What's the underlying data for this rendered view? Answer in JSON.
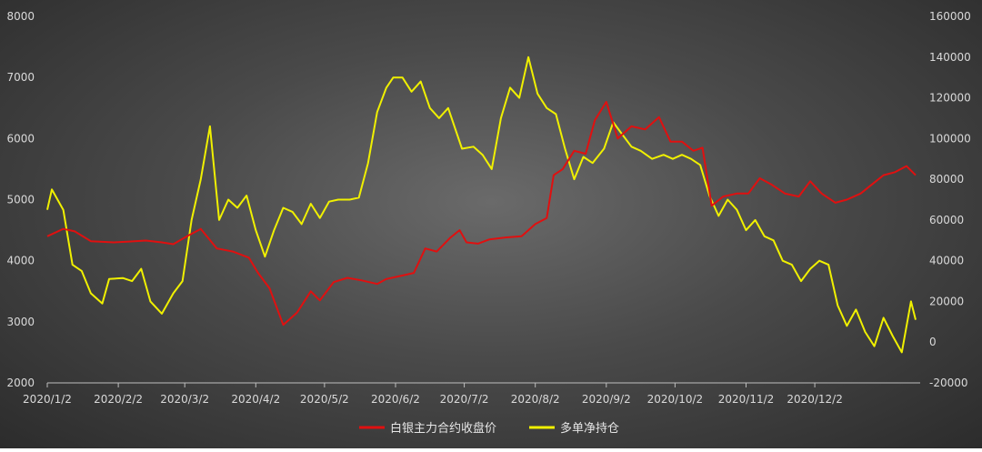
{
  "chart_data": {
    "type": "line",
    "x_ticks": [
      "2020/1/2",
      "2020/2/2",
      "2020/3/2",
      "2020/4/2",
      "2020/5/2",
      "2020/6/2",
      "2020/7/2",
      "2020/8/2",
      "2020/9/2",
      "2020/10/2",
      "2020/11/2",
      "2020/12/2"
    ],
    "y_left": {
      "ticks": [
        2000,
        3000,
        4000,
        5000,
        6000,
        7000,
        8000
      ],
      "range": [
        2000,
        8000
      ]
    },
    "y_right": {
      "ticks": [
        "-20000",
        "0",
        "20000",
        "40000",
        "60000",
        "80000",
        "100000",
        "120000",
        "140000",
        "160000"
      ],
      "range": [
        -20000,
        160000
      ]
    },
    "grid": false,
    "legend_position": "bottom",
    "series": [
      {
        "name": "白银主力合约收盘价",
        "axis": "left",
        "color": "#e01010",
        "points": [
          [
            "2020/1/2",
            4400
          ],
          [
            "2020/1/9",
            4520
          ],
          [
            "2020/1/14",
            4480
          ],
          [
            "2020/1/21",
            4320
          ],
          [
            "2020/1/31",
            4300
          ],
          [
            "2020/2/6",
            4310
          ],
          [
            "2020/2/14",
            4330
          ],
          [
            "2020/2/21",
            4300
          ],
          [
            "2020/2/26",
            4270
          ],
          [
            "2020/3/3",
            4400
          ],
          [
            "2020/3/9",
            4520
          ],
          [
            "2020/3/16",
            4200
          ],
          [
            "2020/3/23",
            4150
          ],
          [
            "2020/3/30",
            4050
          ],
          [
            "2020/4/3",
            3800
          ],
          [
            "2020/4/8",
            3550
          ],
          [
            "2020/4/14",
            2950
          ],
          [
            "2020/4/20",
            3150
          ],
          [
            "2020/4/26",
            3500
          ],
          [
            "2020/4/30",
            3350
          ],
          [
            "2020/5/6",
            3650
          ],
          [
            "2020/5/12",
            3720
          ],
          [
            "2020/5/18",
            3680
          ],
          [
            "2020/5/25",
            3620
          ],
          [
            "2020/5/29",
            3700
          ],
          [
            "2020/6/4",
            3750
          ],
          [
            "2020/6/10",
            3800
          ],
          [
            "2020/6/15",
            4200
          ],
          [
            "2020/6/20",
            4150
          ],
          [
            "2020/6/26",
            4380
          ],
          [
            "2020/6/30",
            4500
          ],
          [
            "2020/7/3",
            4300
          ],
          [
            "2020/7/8",
            4280
          ],
          [
            "2020/7/13",
            4350
          ],
          [
            "2020/7/20",
            4380
          ],
          [
            "2020/7/27",
            4400
          ],
          [
            "2020/8/2",
            4600
          ],
          [
            "2020/8/7",
            4700
          ],
          [
            "2020/8/10",
            5400
          ],
          [
            "2020/8/14",
            5500
          ],
          [
            "2020/8/19",
            5800
          ],
          [
            "2020/8/24",
            5750
          ],
          [
            "2020/8/28",
            6300
          ],
          [
            "2020/9/2",
            6600
          ],
          [
            "2020/9/7",
            6000
          ],
          [
            "2020/9/13",
            6200
          ],
          [
            "2020/9/19",
            6150
          ],
          [
            "2020/9/25",
            6350
          ],
          [
            "2020/9/30",
            5950
          ],
          [
            "2020/10/5",
            5950
          ],
          [
            "2020/10/10",
            5800
          ],
          [
            "2020/10/14",
            5850
          ],
          [
            "2020/10/18",
            4900
          ],
          [
            "2020/10/23",
            5050
          ],
          [
            "2020/10/29",
            5100
          ],
          [
            "2020/11/3",
            5100
          ],
          [
            "2020/11/8",
            5350
          ],
          [
            "2020/11/13",
            5250
          ],
          [
            "2020/11/19",
            5100
          ],
          [
            "2020/11/25",
            5050
          ],
          [
            "2020/11/30",
            5300
          ],
          [
            "2020/12/5",
            5100
          ],
          [
            "2020/12/11",
            4950
          ],
          [
            "2020/12/16",
            5000
          ],
          [
            "2020/12/22",
            5100
          ],
          [
            "2020/12/27",
            5250
          ],
          [
            "2021/1/1",
            5400
          ],
          [
            "2021/1/6",
            5450
          ],
          [
            "2021/1/11",
            5550
          ],
          [
            "2021/1/15",
            5400
          ]
        ]
      },
      {
        "name": "多单净持仓",
        "axis": "right",
        "color": "#f0f000",
        "points": [
          [
            "2020/1/2",
            65000
          ],
          [
            "2020/1/4",
            75000
          ],
          [
            "2020/1/9",
            65000
          ],
          [
            "2020/1/13",
            38000
          ],
          [
            "2020/1/17",
            35000
          ],
          [
            "2020/1/21",
            24000
          ],
          [
            "2020/1/26",
            19000
          ],
          [
            "2020/1/29",
            31000
          ],
          [
            "2020/2/4",
            31500
          ],
          [
            "2020/2/8",
            30000
          ],
          [
            "2020/2/12",
            36000
          ],
          [
            "2020/2/16",
            20000
          ],
          [
            "2020/2/21",
            14000
          ],
          [
            "2020/2/26",
            24000
          ],
          [
            "2020/3/1",
            30000
          ],
          [
            "2020/3/5",
            60000
          ],
          [
            "2020/3/9",
            80000
          ],
          [
            "2020/3/13",
            106000
          ],
          [
            "2020/3/17",
            60000
          ],
          [
            "2020/3/21",
            70000
          ],
          [
            "2020/3/25",
            66000
          ],
          [
            "2020/3/29",
            72000
          ],
          [
            "2020/4/2",
            55000
          ],
          [
            "2020/4/6",
            42000
          ],
          [
            "2020/4/10",
            55000
          ],
          [
            "2020/4/14",
            66000
          ],
          [
            "2020/4/18",
            64000
          ],
          [
            "2020/4/22",
            58000
          ],
          [
            "2020/4/26",
            68000
          ],
          [
            "2020/4/30",
            61000
          ],
          [
            "2020/5/4",
            69000
          ],
          [
            "2020/5/8",
            70000
          ],
          [
            "2020/5/13",
            70000
          ],
          [
            "2020/5/17",
            71000
          ],
          [
            "2020/5/21",
            88000
          ],
          [
            "2020/5/25",
            113000
          ],
          [
            "2020/5/29",
            125000
          ],
          [
            "2020/6/1",
            130000
          ],
          [
            "2020/6/5",
            130000
          ],
          [
            "2020/6/9",
            123000
          ],
          [
            "2020/6/13",
            128000
          ],
          [
            "2020/6/17",
            115000
          ],
          [
            "2020/6/21",
            110000
          ],
          [
            "2020/6/25",
            115000
          ],
          [
            "2020/7/1",
            95000
          ],
          [
            "2020/7/6",
            96000
          ],
          [
            "2020/7/10",
            92000
          ],
          [
            "2020/7/14",
            85000
          ],
          [
            "2020/7/18",
            110000
          ],
          [
            "2020/7/22",
            125000
          ],
          [
            "2020/7/26",
            120000
          ],
          [
            "2020/7/30",
            140000
          ],
          [
            "2020/8/3",
            122000
          ],
          [
            "2020/8/7",
            115000
          ],
          [
            "2020/8/11",
            112000
          ],
          [
            "2020/8/15",
            95000
          ],
          [
            "2020/8/19",
            80000
          ],
          [
            "2020/8/23",
            91000
          ],
          [
            "2020/8/27",
            88000
          ],
          [
            "2020/9/1",
            95000
          ],
          [
            "2020/9/5",
            108000
          ],
          [
            "2020/9/9",
            102000
          ],
          [
            "2020/9/13",
            96000
          ],
          [
            "2020/9/17",
            94000
          ],
          [
            "2020/9/22",
            90000
          ],
          [
            "2020/9/27",
            92000
          ],
          [
            "2020/10/1",
            90000
          ],
          [
            "2020/10/5",
            92000
          ],
          [
            "2020/10/9",
            90000
          ],
          [
            "2020/10/13",
            87000
          ],
          [
            "2020/10/17",
            72000
          ],
          [
            "2020/10/21",
            62000
          ],
          [
            "2020/10/25",
            70000
          ],
          [
            "2020/10/29",
            65000
          ],
          [
            "2020/11/2",
            55000
          ],
          [
            "2020/11/6",
            60000
          ],
          [
            "2020/11/10",
            52000
          ],
          [
            "2020/11/14",
            50000
          ],
          [
            "2020/11/18",
            40000
          ],
          [
            "2020/11/22",
            38000
          ],
          [
            "2020/11/26",
            30000
          ],
          [
            "2020/11/30",
            36000
          ],
          [
            "2020/12/4",
            40000
          ],
          [
            "2020/12/8",
            38000
          ],
          [
            "2020/12/12",
            18000
          ],
          [
            "2020/12/16",
            8000
          ],
          [
            "2020/12/20",
            16000
          ],
          [
            "2020/12/24",
            5000
          ],
          [
            "2020/12/28",
            -2000
          ],
          [
            "2021/1/1",
            12000
          ],
          [
            "2021/1/5",
            3000
          ],
          [
            "2021/1/9",
            -5000
          ],
          [
            "2021/1/13",
            20000
          ],
          [
            "2021/1/15",
            11000
          ]
        ]
      }
    ]
  }
}
